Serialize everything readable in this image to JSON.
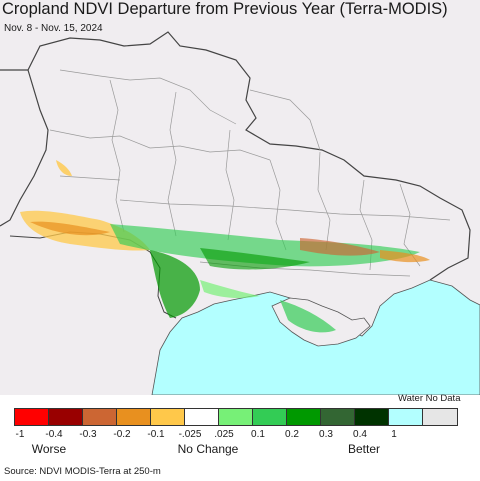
{
  "header": {
    "title": "Cropland NDVI Departure from Previous Year (Terra-MODIS)",
    "subtitle": "Nov. 8 - Nov. 15, 2024"
  },
  "legend": {
    "header": "Water No Data",
    "colors": [
      "#ff0000",
      "#990000",
      "#cc6633",
      "#e8901f",
      "#ffc84a",
      "#ffffff",
      "#77f077",
      "#33cc55",
      "#009900",
      "#336633",
      "#003300",
      "#b3ffff",
      "#e6e6e6"
    ],
    "tick_labels": [
      "-1",
      "-0.4",
      "-0.3",
      "-0.2",
      "-0.1",
      "-.025",
      ".025",
      "0.1",
      "0.2",
      "0.3",
      "0.4",
      "1"
    ],
    "categories": [
      "Worse",
      "No Change",
      "Better"
    ]
  },
  "footer": {
    "source": "Source: NDVI MODIS-Terra at 250-m"
  },
  "map_colors": {
    "land": "#f0edf0",
    "water": "#b3ffff",
    "border": "#555555",
    "admin": "#9a9a9a"
  }
}
